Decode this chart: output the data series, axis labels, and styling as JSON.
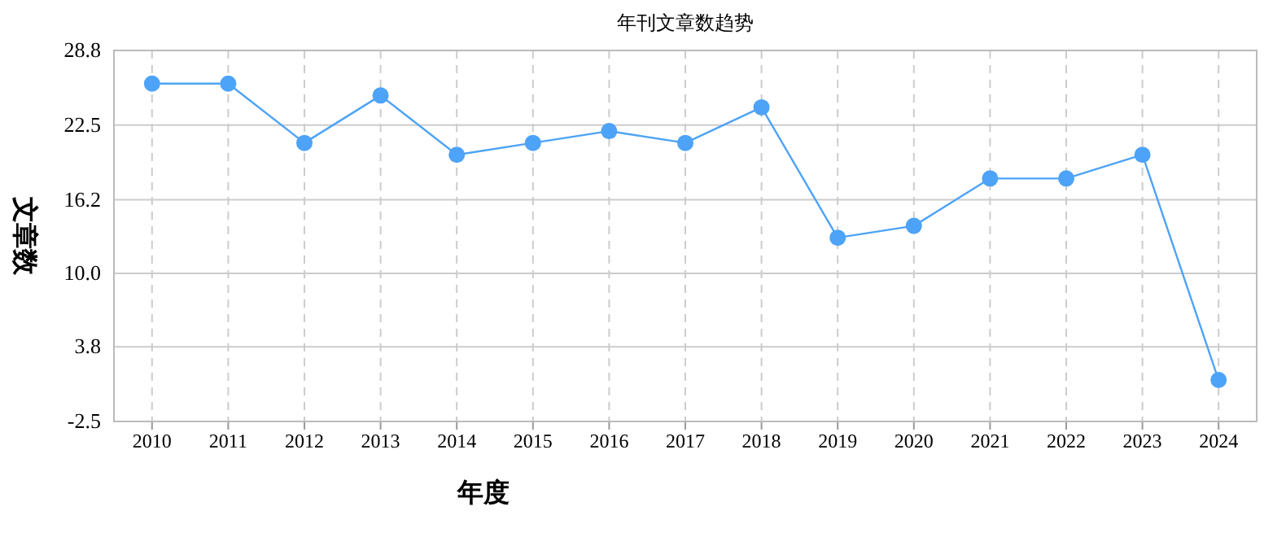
{
  "chart_data": {
    "type": "line",
    "title": "年刊文章数趋势",
    "xlabel": "年度",
    "ylabel": "文章数",
    "categories": [
      "2010",
      "2011",
      "2012",
      "2013",
      "2014",
      "2015",
      "2016",
      "2017",
      "2018",
      "2019",
      "2020",
      "2021",
      "2022",
      "2023",
      "2024"
    ],
    "series": [
      {
        "color": "#4da3f7",
        "values": [
          26,
          26,
          21,
          25,
          20,
          21,
          22,
          21,
          24,
          13,
          14,
          18,
          18,
          20,
          1
        ]
      }
    ],
    "ylim": [
      -2.5,
      28.8
    ],
    "yticks": [
      {
        "value": -2.5,
        "label": "-2.5"
      },
      {
        "value": 3.8,
        "label": "3.8"
      },
      {
        "value": 10,
        "label": "10.0"
      },
      {
        "value": 16.2,
        "label": "16.2"
      },
      {
        "value": 22.5,
        "label": "22.5"
      },
      {
        "value": 28.8,
        "label": "28.8"
      }
    ],
    "grid": true,
    "marker": "circle",
    "line_style": "solid"
  }
}
